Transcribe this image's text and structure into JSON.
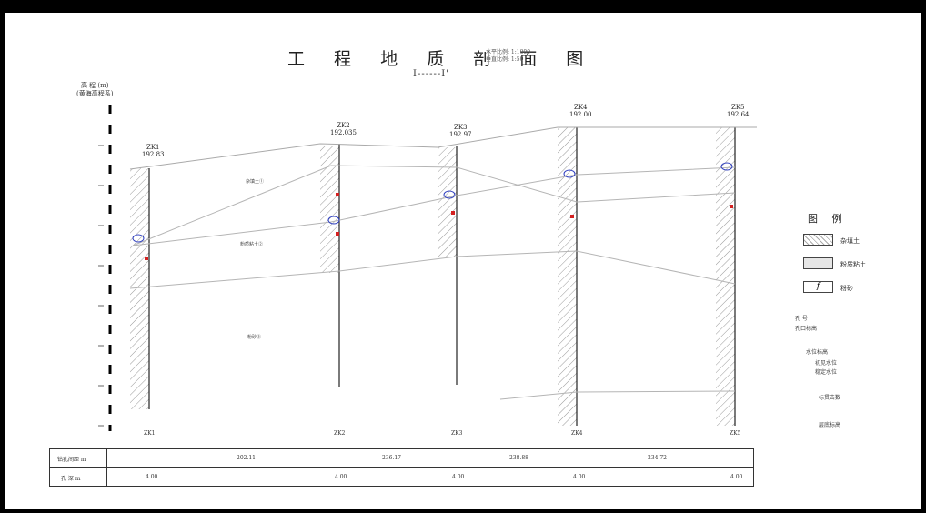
{
  "title": "工 程 地 质 剖 面 图",
  "scale_h": "水平比例: 1:1000",
  "scale_v": "垂直比例: 1:50",
  "section_id": "I------I'",
  "ylabel": [
    "高 程 (m)",
    "(黄海高程系)"
  ],
  "boreholes": [
    {
      "id": "ZK1",
      "elev": "192.83"
    },
    {
      "id": "ZK2",
      "elev": "192.035"
    },
    {
      "id": "ZK3",
      "elev": "192.97"
    },
    {
      "id": "ZK4",
      "elev": "192.00"
    },
    {
      "id": "ZK5",
      "elev": "192.64"
    }
  ],
  "layer_tags": [
    "杂填土①",
    "粉质粘土②",
    "粉砂③"
  ],
  "legend": {
    "title": "图 例",
    "items": [
      {
        "label": "杂填土",
        "pattern": "hatch"
      },
      {
        "label": "粉质粘土",
        "pattern": "dots"
      },
      {
        "label": "粉砂",
        "pattern": "f"
      }
    ]
  },
  "notes": [
    "孔 号",
    "孔口标高",
    "水位标高",
    "初见水位",
    "稳定水位",
    "标贯击数",
    "层底标高"
  ],
  "table": {
    "row1_label": "钻孔间距 m",
    "row2_label": "孔 深 m",
    "spacings": [
      "202.11",
      "236.17",
      "238.88",
      "234.72"
    ],
    "depths": [
      "4.00",
      "4.00",
      "4.00",
      "4.00",
      "4.00"
    ]
  }
}
